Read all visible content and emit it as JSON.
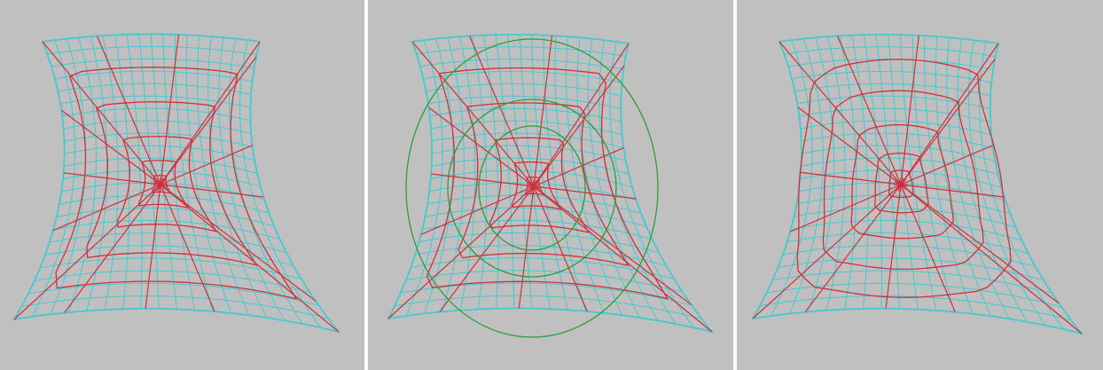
{
  "colors": {
    "background": "#c0c0c0",
    "mesh": "#46c8d0",
    "radial": "#d0303a",
    "overlay": "#2e9c3c",
    "divider": "#ffffff"
  },
  "panels": [
    {
      "id": "panel-1",
      "variant": "distorted-rings",
      "overlay_rings": 0
    },
    {
      "id": "panel-2",
      "variant": "distorted-rings-with-circles",
      "overlay_rings": 3
    },
    {
      "id": "panel-3",
      "variant": "circular-rings",
      "overlay_rings": 0
    }
  ]
}
